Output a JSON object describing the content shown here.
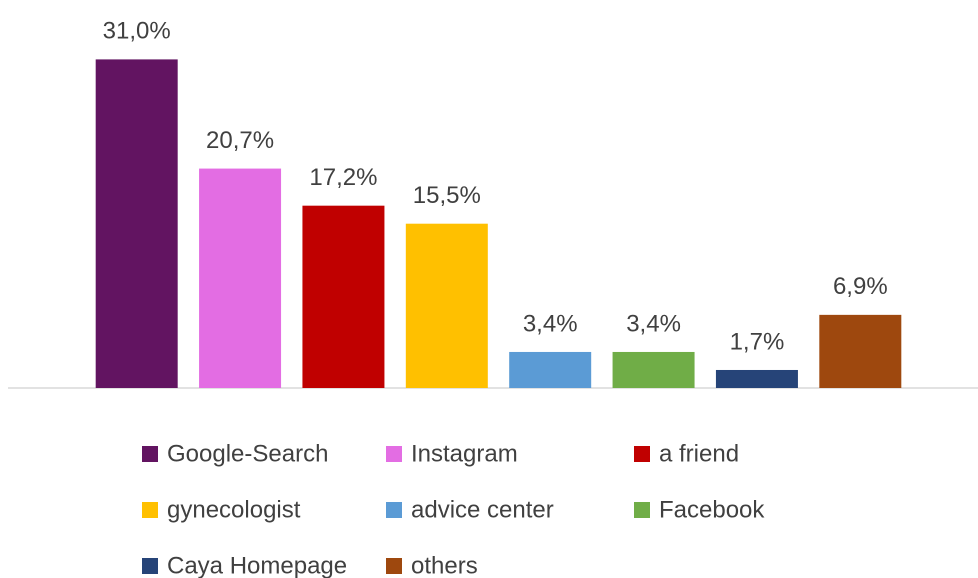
{
  "chart_data": {
    "type": "bar",
    "categories": [
      "Google-Search",
      "Instagram",
      "a friend",
      "gynecologist",
      "advice center",
      "Facebook",
      "Caya Homepage",
      "others"
    ],
    "values": [
      31.0,
      20.7,
      17.2,
      15.5,
      3.4,
      3.4,
      1.7,
      6.9
    ],
    "value_labels": [
      "31,0%",
      "20,7%",
      "17,2%",
      "15,5%",
      "3,4%",
      "3,4%",
      "1,7%",
      "6,9%"
    ],
    "colors": [
      "#621461",
      "#e36de3",
      "#c00000",
      "#ffc000",
      "#5b9bd5",
      "#70ad47",
      "#264478",
      "#9e480e"
    ],
    "ylim": [
      0,
      35
    ],
    "legend": "bottom"
  }
}
